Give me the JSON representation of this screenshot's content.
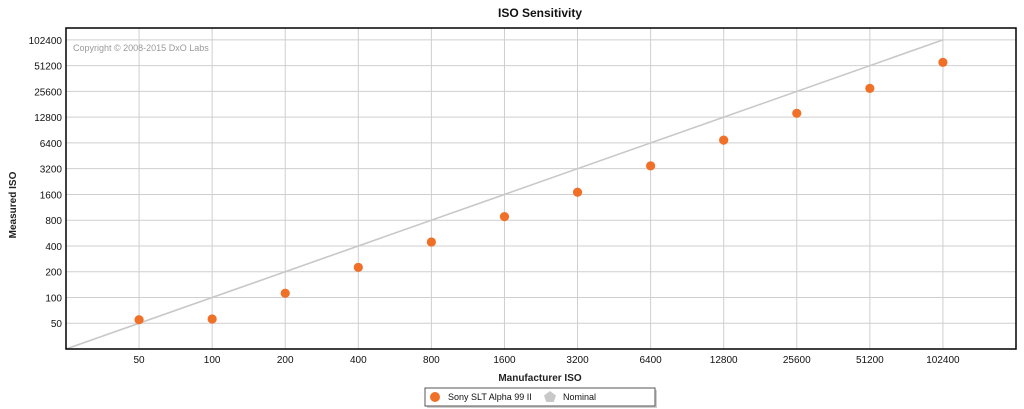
{
  "chart_data": {
    "type": "scatter",
    "title": "ISO Sensitivity",
    "xlabel": "Manufacturer ISO",
    "ylabel": "Measured ISO",
    "watermark": "Copyright © 2008-2015 DxO Labs",
    "x_scale": "log2",
    "y_scale": "log2",
    "x_ticks": [
      "50",
      "100",
      "200",
      "400",
      "800",
      "1600",
      "3200",
      "6400",
      "12800",
      "25600",
      "51200",
      "102400"
    ],
    "y_ticks": [
      "50",
      "100",
      "200",
      "400",
      "800",
      "1600",
      "3200",
      "6400",
      "12800",
      "25600",
      "51200",
      "102400"
    ],
    "xlim": [
      25,
      204800
    ],
    "ylim": [
      25,
      141000
    ],
    "grid": true,
    "legend_position": "bottom-center",
    "series": [
      {
        "name": "Sony SLT Alpha 99 II",
        "color": "#f07028",
        "marker": "circle",
        "points": [
          {
            "x": 50,
            "y": 55
          },
          {
            "x": 100,
            "y": 56
          },
          {
            "x": 200,
            "y": 112
          },
          {
            "x": 400,
            "y": 225
          },
          {
            "x": 800,
            "y": 445
          },
          {
            "x": 1600,
            "y": 880
          },
          {
            "x": 3200,
            "y": 1700
          },
          {
            "x": 6400,
            "y": 3450
          },
          {
            "x": 12800,
            "y": 6900
          },
          {
            "x": 25600,
            "y": 14200
          },
          {
            "x": 51200,
            "y": 27800
          },
          {
            "x": 102400,
            "y": 56000
          }
        ]
      },
      {
        "name": "Nominal",
        "color": "#c8c8c8",
        "marker": "pentagon",
        "type": "line",
        "points": [
          {
            "x": 25,
            "y": 25
          },
          {
            "x": 102400,
            "y": 102400
          }
        ]
      }
    ]
  }
}
